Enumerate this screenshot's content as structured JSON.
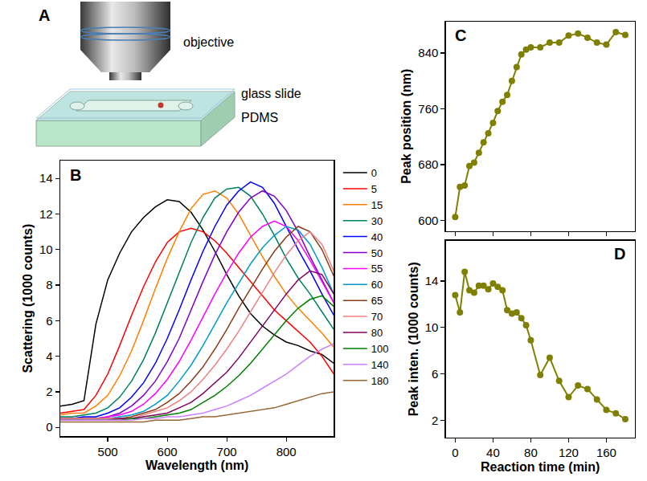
{
  "diagram": {
    "panel_label": "A",
    "objective": "objective",
    "glass_slide": "glass slide",
    "substrate": "PDMS"
  },
  "chart_data": [
    {
      "type": "line",
      "panel_label": "B",
      "x_label": "Wavelength (nm)",
      "y_label": "Scattering (1000 counts)",
      "xlim": [
        420,
        880
      ],
      "xticks": [
        500,
        600,
        700,
        800
      ],
      "ylim": [
        -0.5,
        15
      ],
      "yticks": [
        0,
        2,
        4,
        6,
        8,
        10,
        12,
        14
      ],
      "grid": false,
      "legend": "right",
      "x": [
        420,
        440,
        460,
        480,
        500,
        520,
        540,
        560,
        580,
        600,
        620,
        640,
        660,
        680,
        700,
        720,
        740,
        760,
        780,
        800,
        820,
        840,
        860,
        880
      ],
      "series": [
        {
          "name": "0",
          "color": "#000000",
          "values": [
            1.2,
            1.3,
            1.5,
            5.8,
            8.3,
            9.8,
            11.0,
            11.8,
            12.4,
            12.8,
            12.7,
            12.1,
            11.1,
            9.9,
            8.6,
            7.4,
            6.4,
            5.7,
            5.2,
            4.8,
            4.6,
            4.3,
            4.1,
            3.6
          ]
        },
        {
          "name": "5",
          "color": "#ff0000",
          "values": [
            0.8,
            0.9,
            1.0,
            1.8,
            3.0,
            4.6,
            6.3,
            7.9,
            9.3,
            10.4,
            11.0,
            11.2,
            11.0,
            10.5,
            9.8,
            9.0,
            8.2,
            7.4,
            6.6,
            6.0,
            5.4,
            4.8,
            4.0,
            3.0
          ]
        },
        {
          "name": "15",
          "color": "#ff7f00",
          "values": [
            0.7,
            0.8,
            0.8,
            1.2,
            1.8,
            2.9,
            4.3,
            6.0,
            7.8,
            9.5,
            11.0,
            12.3,
            13.1,
            13.3,
            12.9,
            12.0,
            10.8,
            9.6,
            8.5,
            7.5,
            6.7,
            6.0,
            5.3,
            4.5
          ]
        },
        {
          "name": "30",
          "color": "#008060",
          "values": [
            0.6,
            0.6,
            0.7,
            0.8,
            1.1,
            1.7,
            2.6,
            3.8,
            5.3,
            7.0,
            8.7,
            10.4,
            11.8,
            12.9,
            13.4,
            13.5,
            13.0,
            12.0,
            10.8,
            9.5,
            8.4,
            7.5,
            6.5,
            5.5
          ]
        },
        {
          "name": "40",
          "color": "#0000ff",
          "values": [
            0.5,
            0.5,
            0.6,
            0.6,
            0.8,
            1.1,
            1.7,
            2.5,
            3.6,
            5.0,
            6.6,
            8.3,
            9.9,
            11.3,
            12.5,
            13.3,
            13.8,
            13.5,
            12.6,
            11.3,
            10.0,
            8.8,
            7.5,
            6.3
          ]
        },
        {
          "name": "50",
          "color": "#7f00cc",
          "values": [
            0.5,
            0.5,
            0.5,
            0.5,
            0.6,
            0.8,
            1.2,
            1.8,
            2.6,
            3.7,
            5.0,
            6.6,
            8.2,
            9.7,
            11.0,
            12.1,
            12.9,
            13.3,
            13.0,
            12.2,
            11.0,
            9.6,
            8.3,
            7.0
          ]
        },
        {
          "name": "55",
          "color": "#ff00ff",
          "values": [
            0.5,
            0.5,
            0.5,
            0.5,
            0.6,
            0.7,
            0.9,
            1.3,
            1.9,
            2.7,
            3.7,
            4.9,
            6.2,
            7.5,
            8.7,
            9.8,
            10.7,
            11.3,
            11.6,
            11.3,
            10.5,
            9.4,
            8.2,
            7.0
          ]
        },
        {
          "name": "60",
          "color": "#0099cc",
          "values": [
            0.5,
            0.5,
            0.5,
            0.5,
            0.5,
            0.6,
            0.7,
            0.9,
            1.3,
            1.8,
            2.6,
            3.5,
            4.6,
            5.8,
            7.0,
            8.1,
            9.2,
            10.1,
            10.8,
            11.3,
            11.1,
            10.3,
            9.0,
            7.5
          ]
        },
        {
          "name": "65",
          "color": "#8b3a1a",
          "values": [
            0.5,
            0.5,
            0.5,
            0.5,
            0.5,
            0.5,
            0.6,
            0.8,
            1.0,
            1.4,
            1.9,
            2.6,
            3.4,
            4.4,
            5.5,
            6.7,
            7.8,
            8.9,
            9.9,
            10.7,
            11.3,
            11.0,
            10.0,
            8.5
          ]
        },
        {
          "name": "70",
          "color": "#f08080",
          "values": [
            0.5,
            0.5,
            0.5,
            0.5,
            0.5,
            0.5,
            0.5,
            0.7,
            0.9,
            1.1,
            1.5,
            2.0,
            2.7,
            3.5,
            4.4,
            5.4,
            6.5,
            7.6,
            8.7,
            9.7,
            10.5,
            11.0,
            10.3,
            8.8
          ]
        },
        {
          "name": "80",
          "color": "#800060",
          "values": [
            0.4,
            0.4,
            0.4,
            0.4,
            0.4,
            0.5,
            0.5,
            0.6,
            0.7,
            0.8,
            1.1,
            1.4,
            1.9,
            2.5,
            3.1,
            3.9,
            4.8,
            5.7,
            6.6,
            7.5,
            8.3,
            8.8,
            8.6,
            7.5
          ]
        },
        {
          "name": "100",
          "color": "#008000",
          "values": [
            0.4,
            0.4,
            0.4,
            0.4,
            0.4,
            0.4,
            0.5,
            0.5,
            0.6,
            0.7,
            0.8,
            1.0,
            1.4,
            1.8,
            2.3,
            2.9,
            3.6,
            4.4,
            5.2,
            6.0,
            6.7,
            7.2,
            7.4,
            6.8
          ]
        },
        {
          "name": "140",
          "color": "#cc80ff",
          "values": [
            0.4,
            0.4,
            0.4,
            0.4,
            0.4,
            0.4,
            0.4,
            0.5,
            0.5,
            0.6,
            0.6,
            0.7,
            0.8,
            1.0,
            1.2,
            1.5,
            1.8,
            2.2,
            2.6,
            3.0,
            3.5,
            4.0,
            4.4,
            4.7
          ]
        },
        {
          "name": "180",
          "color": "#996633",
          "values": [
            0.3,
            0.3,
            0.3,
            0.3,
            0.3,
            0.3,
            0.3,
            0.3,
            0.4,
            0.4,
            0.4,
            0.5,
            0.6,
            0.6,
            0.7,
            0.8,
            0.9,
            1.0,
            1.1,
            1.3,
            1.5,
            1.7,
            1.9,
            2.0
          ]
        }
      ]
    },
    {
      "type": "line",
      "panel_label": "C",
      "marker": "circle",
      "color": "#808000",
      "y_label": "Peak position (nm)",
      "tick_labels": "y",
      "grid": false,
      "xlim": [
        -10,
        190
      ],
      "xticks": [
        0,
        40,
        80,
        120,
        160
      ],
      "ylim": [
        585,
        885
      ],
      "yticks": [
        600,
        680,
        760,
        840
      ],
      "x": [
        0,
        5,
        10,
        15,
        20,
        25,
        30,
        35,
        40,
        45,
        50,
        55,
        60,
        65,
        70,
        75,
        80,
        90,
        100,
        110,
        120,
        130,
        140,
        150,
        160,
        170,
        180
      ],
      "values": [
        605,
        648,
        650,
        678,
        683,
        697,
        712,
        725,
        740,
        757,
        770,
        780,
        800,
        820,
        838,
        845,
        848,
        848,
        855,
        855,
        865,
        868,
        862,
        855,
        852,
        870,
        866
      ]
    },
    {
      "type": "line",
      "panel_label": "D",
      "marker": "circle",
      "color": "#808000",
      "x_label": "Reaction time (min)",
      "y_label": "Peak inten. (1000 counts)",
      "grid": false,
      "xlim": [
        -10,
        190
      ],
      "xticks": [
        0,
        40,
        80,
        120,
        160
      ],
      "ylim": [
        0.5,
        17.5
      ],
      "yticks": [
        2,
        6,
        10,
        14
      ],
      "x": [
        0,
        5,
        10,
        15,
        20,
        25,
        30,
        35,
        40,
        45,
        50,
        55,
        60,
        65,
        70,
        75,
        80,
        90,
        100,
        110,
        120,
        130,
        140,
        150,
        160,
        170,
        180
      ],
      "values": [
        12.8,
        11.3,
        14.8,
        13.2,
        13.0,
        13.6,
        13.6,
        13.3,
        13.8,
        13.5,
        13.2,
        11.5,
        11.2,
        11.3,
        10.8,
        10.2,
        8.9,
        5.9,
        7.4,
        5.4,
        4.0,
        5.0,
        4.7,
        3.8,
        2.9,
        2.6,
        2.1
      ]
    }
  ]
}
